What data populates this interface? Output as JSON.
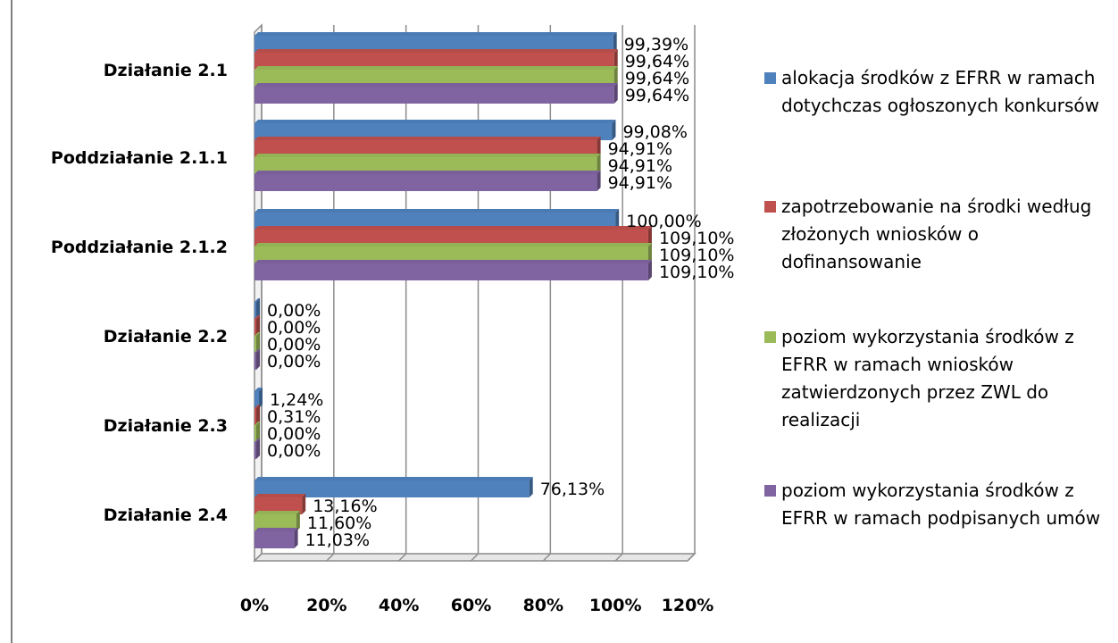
{
  "chart_data": {
    "type": "bar",
    "orientation": "horizontal",
    "categories": [
      "Działanie 2.1",
      "Poddziałanie 2.1.1",
      "Poddziałanie 2.1.2",
      "Działanie 2.2",
      "Działanie 2.3",
      "Działanie 2.4"
    ],
    "series": [
      {
        "name": "alokacja środków z EFRR w ramach dotychczas ogłoszonych konkursów",
        "color": "#4f81bd",
        "values": [
          99.39,
          99.08,
          100.0,
          0.0,
          1.24,
          76.13
        ],
        "labels": [
          "99,39%",
          "99,08%",
          "100,00%",
          "0,00%",
          "1,24%",
          "76,13%"
        ]
      },
      {
        "name": "zapotrzebowanie na środki według złożonych wniosków o dofinansowanie",
        "color": "#c0504d",
        "values": [
          99.64,
          94.91,
          109.1,
          0.0,
          0.31,
          13.16
        ],
        "labels": [
          "99,64%",
          "94,91%",
          "109,10%",
          "0,00%",
          "0,31%",
          "13,16%"
        ]
      },
      {
        "name": "poziom wykorzystania środków z EFRR w ramach wniosków zatwierdzonych przez ZWL do realizacji",
        "color": "#9bbb59",
        "values": [
          99.64,
          94.91,
          109.1,
          0.0,
          0.0,
          11.6
        ],
        "labels": [
          "99,64%",
          "94,91%",
          "109,10%",
          "0,00%",
          "0,00%",
          "11,60%"
        ]
      },
      {
        "name": "poziom wykorzystania środków z EFRR w ramach podpisanych umów",
        "color": "#8064a2",
        "values": [
          99.64,
          94.91,
          109.1,
          0.0,
          0.0,
          11.03
        ],
        "labels": [
          "99,64%",
          "94,91%",
          "109,10%",
          "0,00%",
          "0,00%",
          "11,03%"
        ]
      }
    ],
    "xlim": [
      0,
      120
    ],
    "x_ticks": [
      "0%",
      "20%",
      "40%",
      "60%",
      "80%",
      "100%",
      "120%"
    ],
    "grid": true,
    "legend_position": "right",
    "title": "",
    "xlabel": "",
    "ylabel": ""
  }
}
